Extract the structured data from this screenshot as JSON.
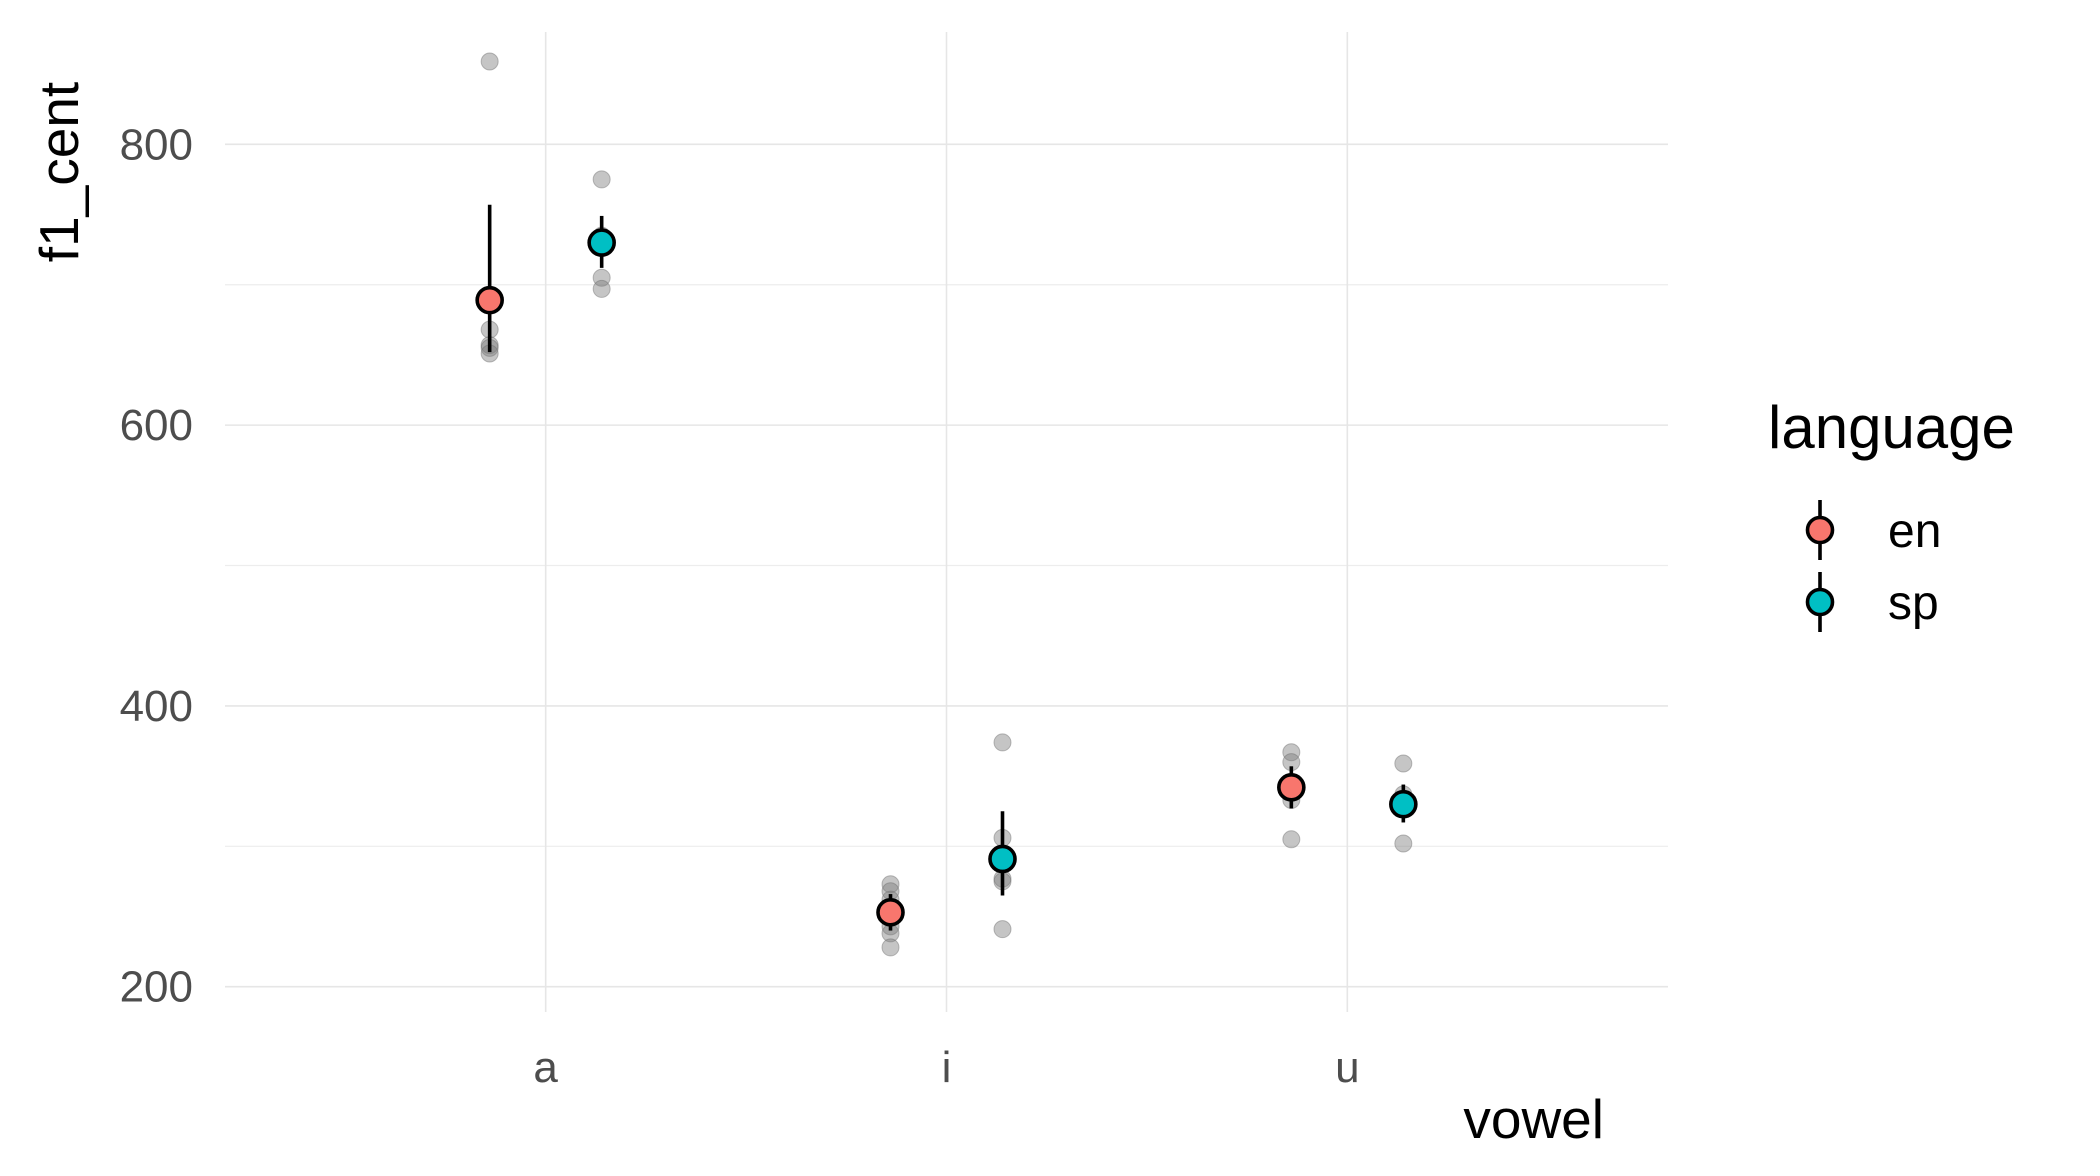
{
  "chart_data": {
    "type": "scatter",
    "xlabel": "vowel",
    "ylabel": "f1_cent",
    "categories": [
      "a",
      "i",
      "u"
    ],
    "ylim": [
      182,
      880
    ],
    "yticks": [
      200,
      400,
      600,
      800
    ],
    "grid": true,
    "legend": {
      "title": "language",
      "position": "right"
    },
    "series": [
      {
        "name": "en",
        "color": "#F8766D",
        "summary": [
          {
            "x": "a",
            "mean": 689,
            "low": 652,
            "high": 757
          },
          {
            "x": "i",
            "mean": 253,
            "low": 240,
            "high": 266
          },
          {
            "x": "u",
            "mean": 342,
            "low": 327,
            "high": 357
          }
        ],
        "raw": [
          {
            "x": "a",
            "values": [
              859,
              668,
              657,
              655,
              651
            ]
          },
          {
            "x": "i",
            "values": [
              273,
              268,
              262,
              255,
              249,
              243,
              238,
              228
            ]
          },
          {
            "x": "u",
            "values": [
              367,
              360,
              345,
              333,
              305
            ]
          }
        ]
      },
      {
        "name": "sp",
        "color": "#00BFC4",
        "summary": [
          {
            "x": "a",
            "mean": 730,
            "low": 712,
            "high": 749
          },
          {
            "x": "i",
            "mean": 291,
            "low": 265,
            "high": 325
          },
          {
            "x": "u",
            "mean": 330,
            "low": 317,
            "high": 344
          }
        ],
        "raw": [
          {
            "x": "a",
            "values": [
              775,
              735,
              705,
              697
            ]
          },
          {
            "x": "i",
            "values": [
              374,
              306,
              277,
              275,
              241
            ]
          },
          {
            "x": "u",
            "values": [
              359,
              337,
              302
            ]
          }
        ]
      }
    ]
  }
}
